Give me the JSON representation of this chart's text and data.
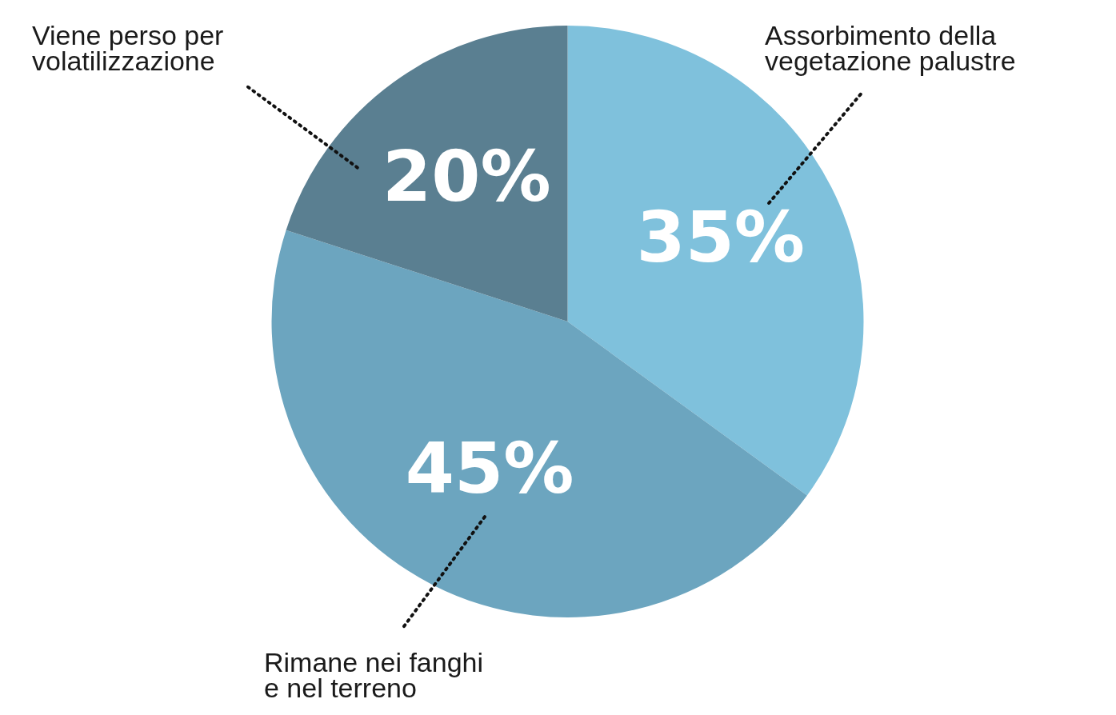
{
  "chart_data": {
    "type": "pie",
    "categories": [
      "Assorbimento della vegetazione palustre",
      "Rimane nei fanghi e nel terreno",
      "Viene perso per volatilizzazione"
    ],
    "values": [
      35,
      45,
      20
    ],
    "colors": [
      "#7fc1dc",
      "#6ca5bf",
      "#5a7f91"
    ],
    "value_labels": [
      "35%",
      "45%",
      "20%"
    ],
    "legend": false
  }
}
